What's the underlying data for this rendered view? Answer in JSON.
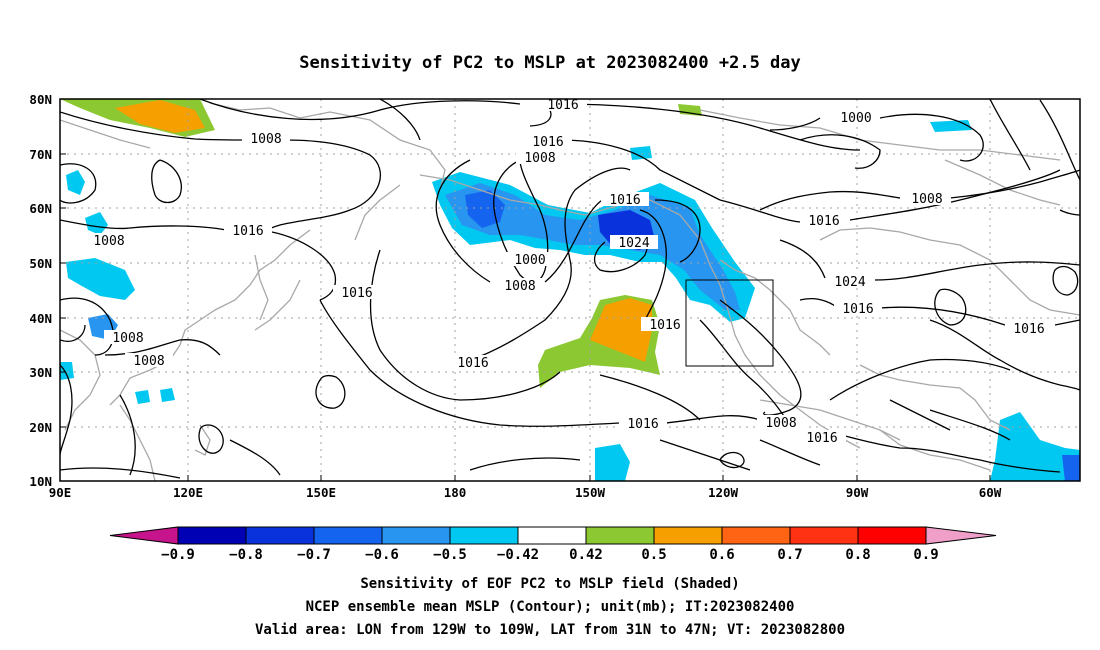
{
  "title": "Sensitivity of PC2 to MSLP at 2023082400 +2.5 day",
  "lat_labels": [
    "80N",
    "70N",
    "60N",
    "50N",
    "40N",
    "30N",
    "20N",
    "10N"
  ],
  "lon_labels": [
    "90E",
    "120E",
    "150E",
    "180",
    "150W",
    "120W",
    "90W",
    "60W"
  ],
  "contour_labels": {
    "l1": "1016",
    "l2": "1008",
    "l3": "1016",
    "l4": "1008",
    "l5": "1016",
    "l6": "1000",
    "l7": "1008",
    "l8": "1016",
    "l9": "1024",
    "l10": "1016",
    "l11": "1008",
    "l12": "1016",
    "l13": "1008",
    "l14": "1008",
    "l15": "1016",
    "l16": "1016",
    "l17": "1008",
    "l18": "1016",
    "l19": "1000",
    "l20": "1008",
    "l21": "1016",
    "l22": "1024",
    "l23": "1016",
    "l24": "1016"
  },
  "colorbar": {
    "labels": [
      "−0.9",
      "−0.8",
      "−0.7",
      "−0.6",
      "−0.5",
      "−0.42",
      "0.42",
      "0.5",
      "0.6",
      "0.7",
      "0.8",
      "0.9"
    ],
    "colors": [
      "#0000b4",
      "#0a32dc",
      "#1464f0",
      "#2896f0",
      "#00c8f0",
      "#ffffff",
      "#8cc832",
      "#f5a000",
      "#ff6414",
      "#ff3214",
      "#ff0000"
    ],
    "low_end_color": "#c8148c",
    "high_end_color": "#f0a0c8"
  },
  "caption": {
    "line1": "Sensitivity of EOF PC2 to MSLP field (Shaded)",
    "line2": "NCEP ensemble mean MSLP (Contour); unit(mb); IT:2023082400",
    "line3": "Valid area: LON from 129W to 109W, LAT from 31N to 47N; VT: 2023082800"
  }
}
